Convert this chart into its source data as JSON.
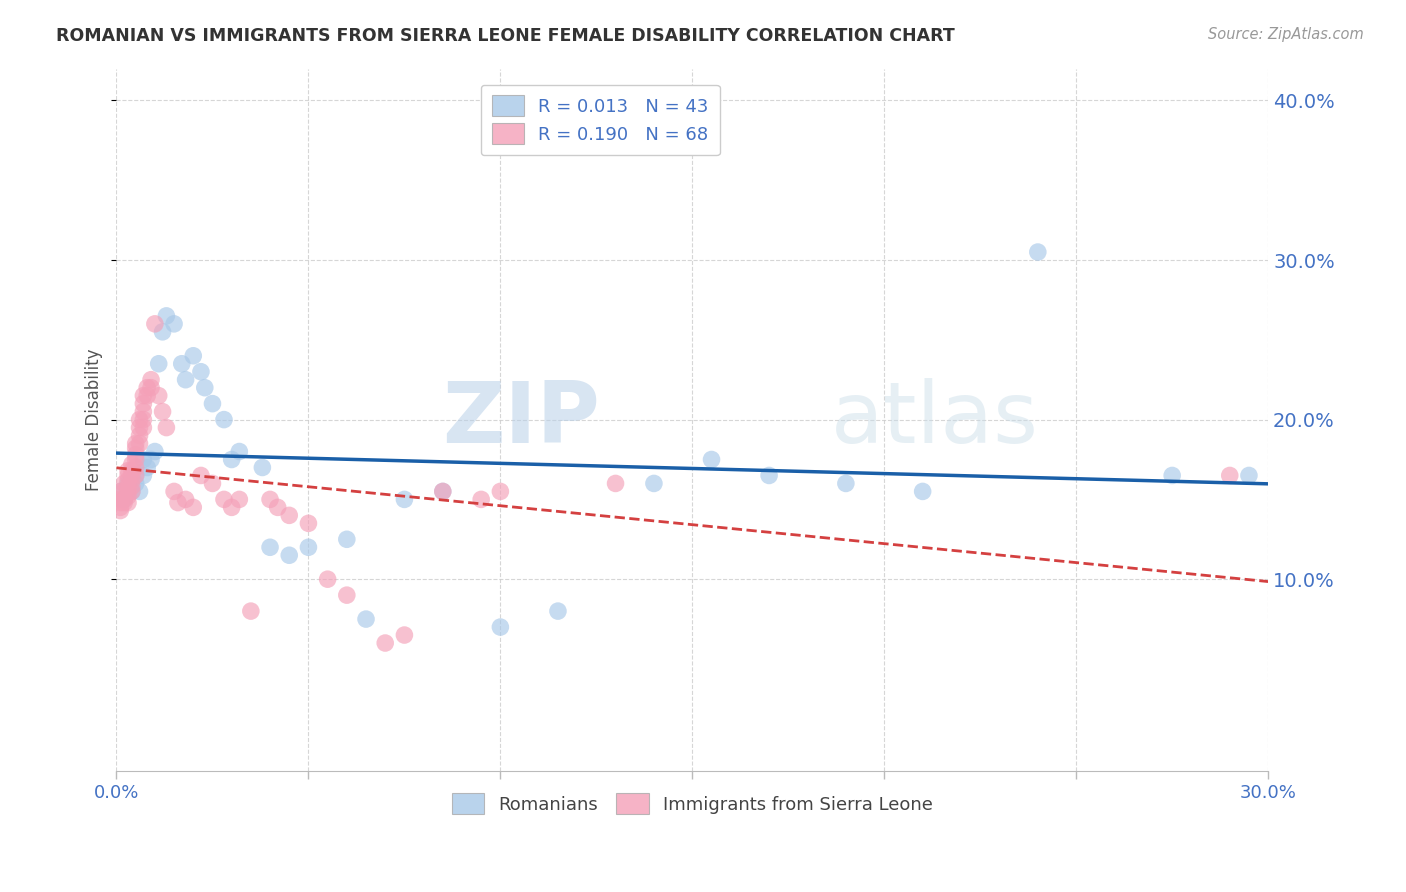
{
  "title": "ROMANIAN VS IMMIGRANTS FROM SIERRA LEONE FEMALE DISABILITY CORRELATION CHART",
  "source": "Source: ZipAtlas.com",
  "ylabel_label": "Female Disability",
  "xlim": [
    0.0,
    0.3
  ],
  "ylim": [
    -0.02,
    0.42
  ],
  "yticks": [
    0.1,
    0.2,
    0.3,
    0.4
  ],
  "xticks": [
    0.0,
    0.3
  ],
  "background_color": "#ffffff",
  "grid_color": "#cccccc",
  "watermark_zip": "ZIP",
  "watermark_atlas": "atlas",
  "legend_R1": "R = 0.013",
  "legend_N1": "N = 43",
  "legend_R2": "R = 0.190",
  "legend_N2": "N = 68",
  "blue_color": "#a8c8e8",
  "pink_color": "#f4a0b8",
  "blue_line_color": "#1a5fa8",
  "pink_line_color": "#d44040",
  "label1": "Romanians",
  "label2": "Immigrants from Sierra Leone",
  "romanians_x": [
    0.001,
    0.002,
    0.003,
    0.004,
    0.005,
    0.005,
    0.006,
    0.007,
    0.007,
    0.008,
    0.009,
    0.01,
    0.011,
    0.012,
    0.013,
    0.015,
    0.017,
    0.018,
    0.02,
    0.022,
    0.023,
    0.025,
    0.028,
    0.03,
    0.032,
    0.038,
    0.04,
    0.045,
    0.05,
    0.06,
    0.065,
    0.075,
    0.085,
    0.1,
    0.115,
    0.14,
    0.155,
    0.17,
    0.19,
    0.21,
    0.24,
    0.275,
    0.295
  ],
  "romanians_y": [
    0.155,
    0.15,
    0.16,
    0.155,
    0.165,
    0.16,
    0.155,
    0.165,
    0.175,
    0.17,
    0.175,
    0.18,
    0.235,
    0.255,
    0.265,
    0.26,
    0.235,
    0.225,
    0.24,
    0.23,
    0.22,
    0.21,
    0.2,
    0.175,
    0.18,
    0.17,
    0.12,
    0.115,
    0.12,
    0.125,
    0.075,
    0.15,
    0.155,
    0.07,
    0.08,
    0.16,
    0.175,
    0.165,
    0.16,
    0.155,
    0.305,
    0.165,
    0.165
  ],
  "sierra_leone_x": [
    0.001,
    0.001,
    0.001,
    0.001,
    0.001,
    0.002,
    0.002,
    0.002,
    0.002,
    0.003,
    0.003,
    0.003,
    0.003,
    0.003,
    0.003,
    0.003,
    0.004,
    0.004,
    0.004,
    0.004,
    0.004,
    0.004,
    0.005,
    0.005,
    0.005,
    0.005,
    0.005,
    0.005,
    0.006,
    0.006,
    0.006,
    0.006,
    0.007,
    0.007,
    0.007,
    0.007,
    0.007,
    0.008,
    0.008,
    0.009,
    0.009,
    0.01,
    0.011,
    0.012,
    0.013,
    0.015,
    0.016,
    0.018,
    0.02,
    0.022,
    0.025,
    0.028,
    0.03,
    0.032,
    0.035,
    0.04,
    0.042,
    0.045,
    0.05,
    0.055,
    0.06,
    0.07,
    0.075,
    0.085,
    0.095,
    0.1,
    0.13,
    0.29
  ],
  "sierra_leone_y": [
    0.155,
    0.15,
    0.148,
    0.145,
    0.143,
    0.16,
    0.155,
    0.15,
    0.148,
    0.168,
    0.165,
    0.162,
    0.158,
    0.155,
    0.152,
    0.148,
    0.172,
    0.168,
    0.165,
    0.162,
    0.158,
    0.155,
    0.185,
    0.182,
    0.178,
    0.175,
    0.17,
    0.165,
    0.2,
    0.195,
    0.19,
    0.185,
    0.215,
    0.21,
    0.205,
    0.2,
    0.195,
    0.22,
    0.215,
    0.225,
    0.22,
    0.26,
    0.215,
    0.205,
    0.195,
    0.155,
    0.148,
    0.15,
    0.145,
    0.165,
    0.16,
    0.15,
    0.145,
    0.15,
    0.08,
    0.15,
    0.145,
    0.14,
    0.135,
    0.1,
    0.09,
    0.06,
    0.065,
    0.155,
    0.15,
    0.155,
    0.16,
    0.165
  ]
}
